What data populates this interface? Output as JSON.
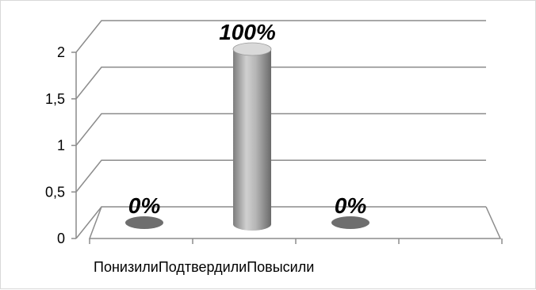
{
  "chart_data": {
    "type": "bar",
    "style": "3d-cylinder",
    "categories": [
      "Понизили",
      "Подтвердили",
      "Повысили"
    ],
    "values": [
      0,
      2,
      0
    ],
    "data_labels": [
      "0%",
      "100%",
      "0%"
    ],
    "ylim": [
      0,
      2
    ],
    "y_ticks": [
      "0",
      "0,5",
      "1",
      "1,5",
      "2"
    ],
    "grid": true,
    "legend": "none",
    "title": "",
    "xlabel": "",
    "ylabel": "",
    "colors": {
      "bar": "#a6a6a6",
      "bar_dark": "#6e6e6e",
      "bar_light": "#d9d9d9",
      "grid": "#8c8c8c"
    }
  }
}
